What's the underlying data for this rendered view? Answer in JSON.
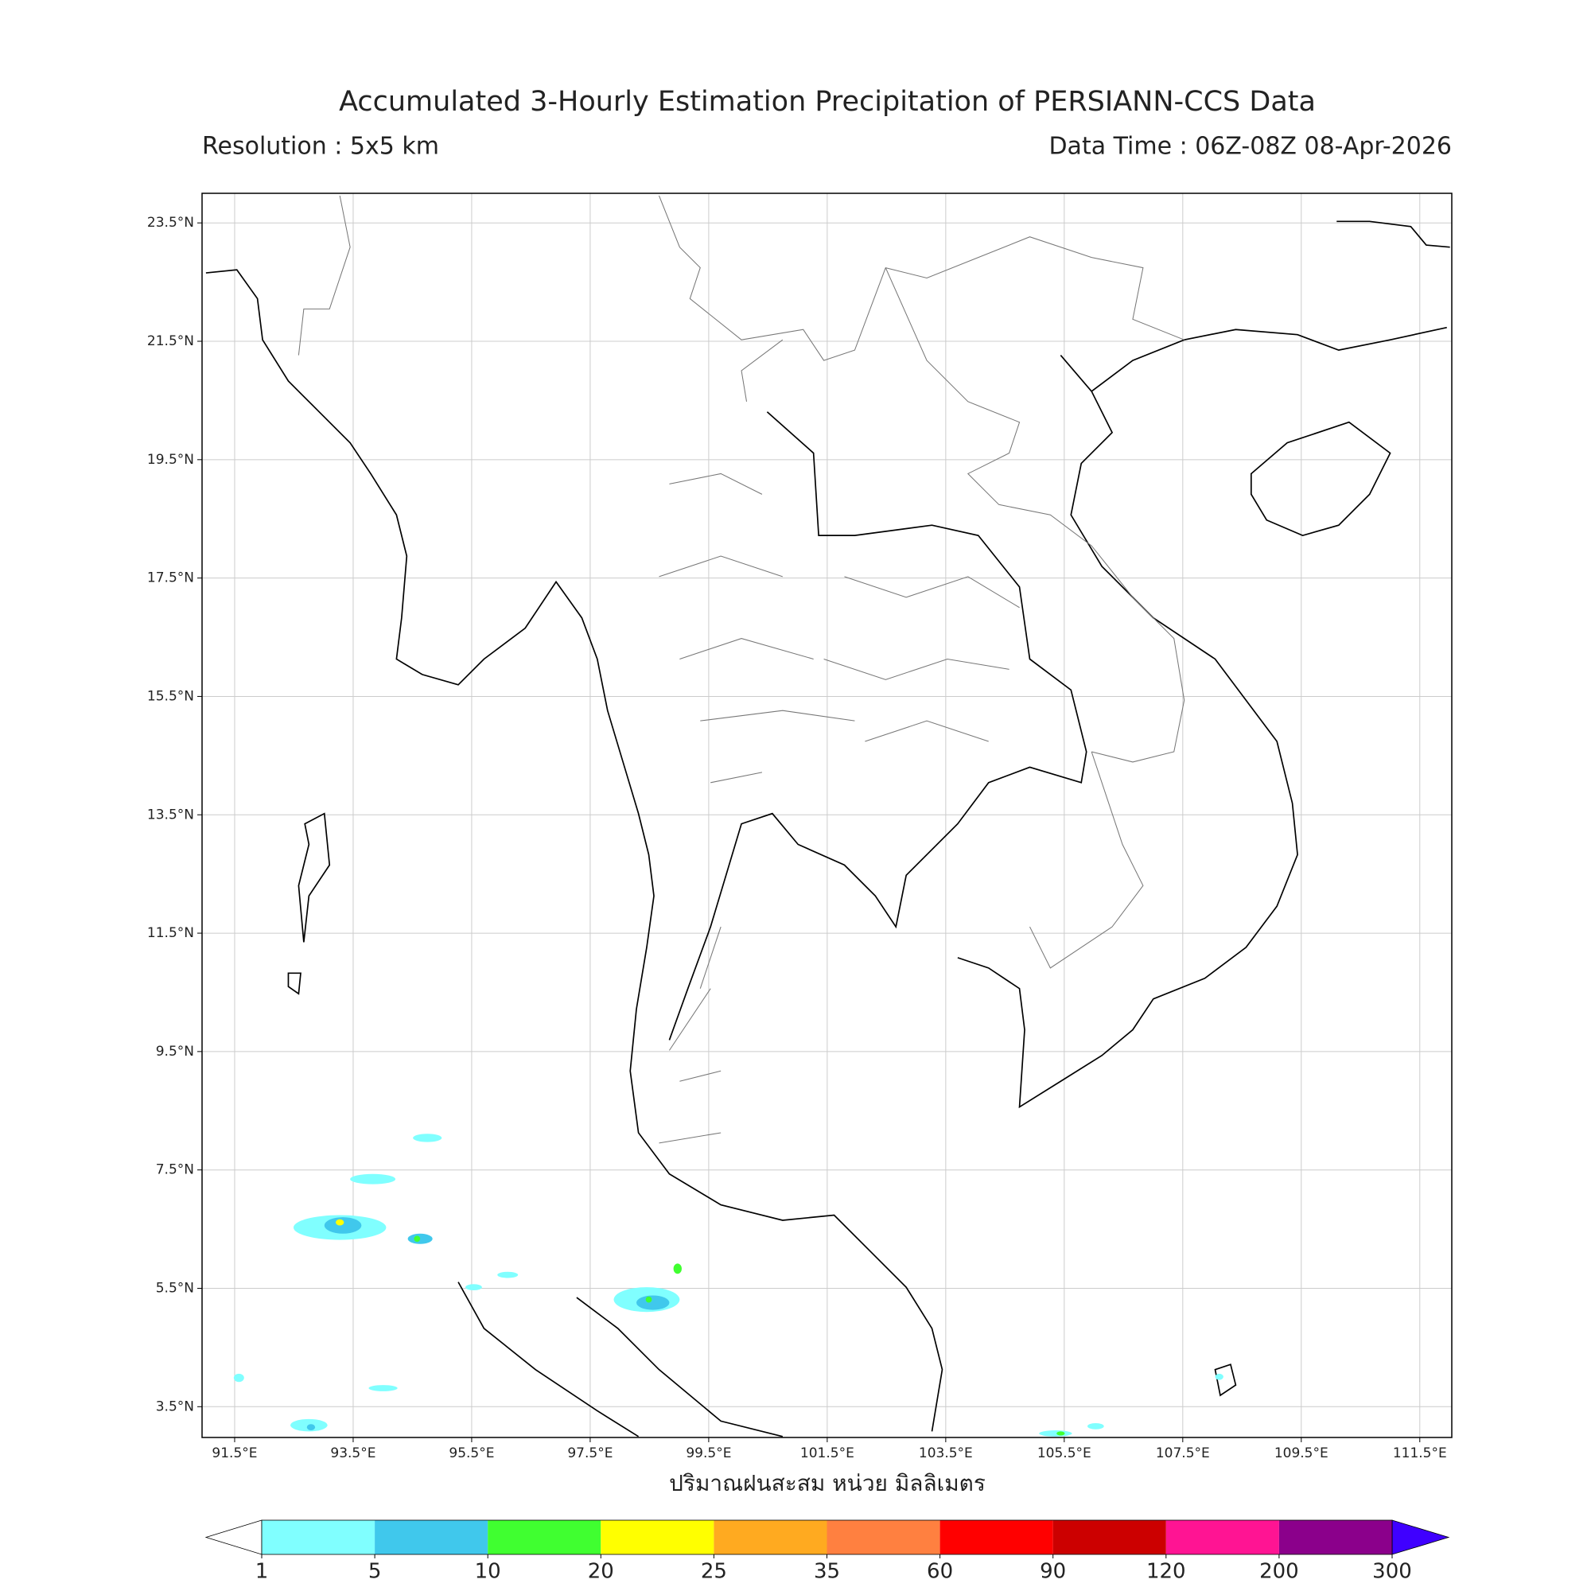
{
  "chart_data": {
    "type": "precipitation-map",
    "title": "Accumulated 3-Hourly Estimation Precipitation of PERSIANN-CCS Data",
    "subtitle_left": "Resolution : 5x5 km",
    "subtitle_right": "Data Time : 06Z-08Z 08-Apr-2026",
    "colorbar_label": "ปริมาณฝนสะสม หน่วย มิลลิเมตร",
    "xlim": [
      90.95,
      112.04
    ],
    "ylim": [
      2.98,
      24.0
    ],
    "xticks": [
      {
        "value": 91.5,
        "label": "91.5°E"
      },
      {
        "value": 93.5,
        "label": "93.5°E"
      },
      {
        "value": 95.5,
        "label": "95.5°E"
      },
      {
        "value": 97.5,
        "label": "97.5°E"
      },
      {
        "value": 99.5,
        "label": "99.5°E"
      },
      {
        "value": 101.5,
        "label": "101.5°E"
      },
      {
        "value": 103.5,
        "label": "103.5°E"
      },
      {
        "value": 105.5,
        "label": "105.5°E"
      },
      {
        "value": 107.5,
        "label": "107.5°E"
      },
      {
        "value": 109.5,
        "label": "109.5°E"
      },
      {
        "value": 111.5,
        "label": "111.5°E"
      }
    ],
    "yticks": [
      {
        "value": 3.5,
        "label": "3.5°N"
      },
      {
        "value": 5.5,
        "label": "5.5°N"
      },
      {
        "value": 7.5,
        "label": "7.5°N"
      },
      {
        "value": 9.5,
        "label": "9.5°N"
      },
      {
        "value": 11.5,
        "label": "11.5°N"
      },
      {
        "value": 13.5,
        "label": "13.5°N"
      },
      {
        "value": 15.5,
        "label": "15.5°N"
      },
      {
        "value": 17.5,
        "label": "17.5°N"
      },
      {
        "value": 19.5,
        "label": "19.5°N"
      },
      {
        "value": 21.5,
        "label": "21.5°N"
      },
      {
        "value": 23.5,
        "label": "23.5°N"
      }
    ],
    "grid": true,
    "levels": [
      1,
      5,
      10,
      20,
      25,
      35,
      60,
      90,
      120,
      200,
      300
    ],
    "colors": [
      "#80ffff",
      "#40c8ec",
      "#40ff30",
      "#ffff00",
      "#ffaa20",
      "#ff8040",
      "#ff0000",
      "#cc0000",
      "#ff1493",
      "#8b008b"
    ],
    "under_color": "#ffffff",
    "over_color": "#3f00ff"
  }
}
